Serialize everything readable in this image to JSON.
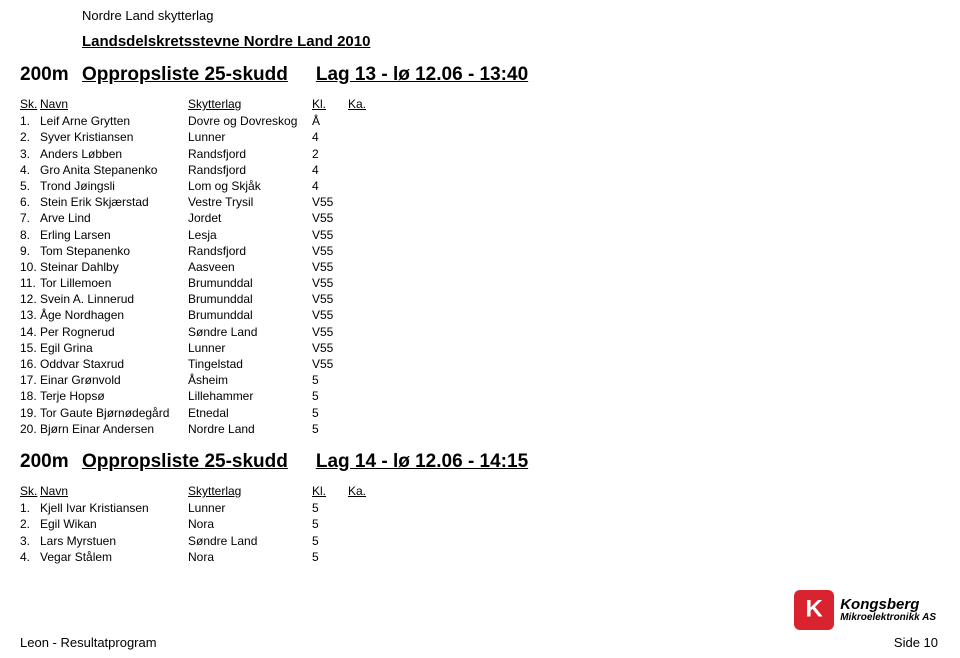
{
  "club_name": "Nordre Land skytterlag",
  "event_title": "Landsdelskretsstevne Nordre Land 2010",
  "distance": "200m",
  "list_title": "Oppropsliste 25-skudd",
  "headers": {
    "sk": "Sk.",
    "name": "Navn",
    "club": "Skytterlag",
    "kl": "Kl.",
    "ka": "Ka."
  },
  "group1": {
    "lag_title": "Lag 13 - lø 12.06 - 13:40",
    "rows": [
      {
        "n": "1.",
        "name": "Leif Arne Grytten",
        "club": "Dovre og Dovreskog",
        "kl": "Å"
      },
      {
        "n": "2.",
        "name": "Syver Kristiansen",
        "club": "Lunner",
        "kl": "4"
      },
      {
        "n": "3.",
        "name": "Anders Løbben",
        "club": "Randsfjord",
        "kl": "2"
      },
      {
        "n": "4.",
        "name": "Gro Anita Stepanenko",
        "club": "Randsfjord",
        "kl": "4"
      },
      {
        "n": "5.",
        "name": "Trond Jøingsli",
        "club": "Lom og Skjåk",
        "kl": "4"
      },
      {
        "n": "6.",
        "name": "Stein Erik Skjærstad",
        "club": "Vestre Trysil",
        "kl": "V55"
      },
      {
        "n": "7.",
        "name": "Arve Lind",
        "club": "Jordet",
        "kl": "V55"
      },
      {
        "n": "8.",
        "name": "Erling Larsen",
        "club": "Lesja",
        "kl": "V55"
      },
      {
        "n": "9.",
        "name": "Tom Stepanenko",
        "club": "Randsfjord",
        "kl": "V55"
      },
      {
        "n": "10.",
        "name": "Steinar Dahlby",
        "club": "Aasveen",
        "kl": "V55"
      },
      {
        "n": "11.",
        "name": "Tor Lillemoen",
        "club": "Brumunddal",
        "kl": "V55"
      },
      {
        "n": "12.",
        "name": "Svein A. Linnerud",
        "club": "Brumunddal",
        "kl": "V55"
      },
      {
        "n": "13.",
        "name": "Åge Nordhagen",
        "club": "Brumunddal",
        "kl": "V55"
      },
      {
        "n": "14.",
        "name": "Per Rognerud",
        "club": "Søndre Land",
        "kl": "V55"
      },
      {
        "n": "15.",
        "name": "Egil Grina",
        "club": "Lunner",
        "kl": "V55"
      },
      {
        "n": "16.",
        "name": "Oddvar Staxrud",
        "club": "Tingelstad",
        "kl": "V55"
      },
      {
        "n": "17.",
        "name": "Einar Grønvold",
        "club": "Åsheim",
        "kl": "5"
      },
      {
        "n": "18.",
        "name": "Terje Hopsø",
        "club": "Lillehammer",
        "kl": "5"
      },
      {
        "n": "19.",
        "name": "Tor Gaute Bjørnødegård",
        "club": "Etnedal",
        "kl": "5"
      },
      {
        "n": "20.",
        "name": "Bjørn Einar Andersen",
        "club": "Nordre Land",
        "kl": "5"
      }
    ]
  },
  "group2": {
    "lag_title": "Lag 14 - lø 12.06 - 14:15",
    "rows": [
      {
        "n": "1.",
        "name": "Kjell Ivar Kristiansen",
        "club": "Lunner",
        "kl": "5"
      },
      {
        "n": "2.",
        "name": "Egil Wikan",
        "club": "Nora",
        "kl": "5"
      },
      {
        "n": "3.",
        "name": "Lars Myrstuen",
        "club": "Søndre Land",
        "kl": "5"
      },
      {
        "n": "4.",
        "name": "Vegar Stålem",
        "club": "Nora",
        "kl": "5"
      }
    ]
  },
  "logo": {
    "brand": "Kongsberg",
    "sub": "Mikroelektronikk AS"
  },
  "footer": {
    "left": "Leon - Resultatprogram",
    "right": "Side 10"
  }
}
